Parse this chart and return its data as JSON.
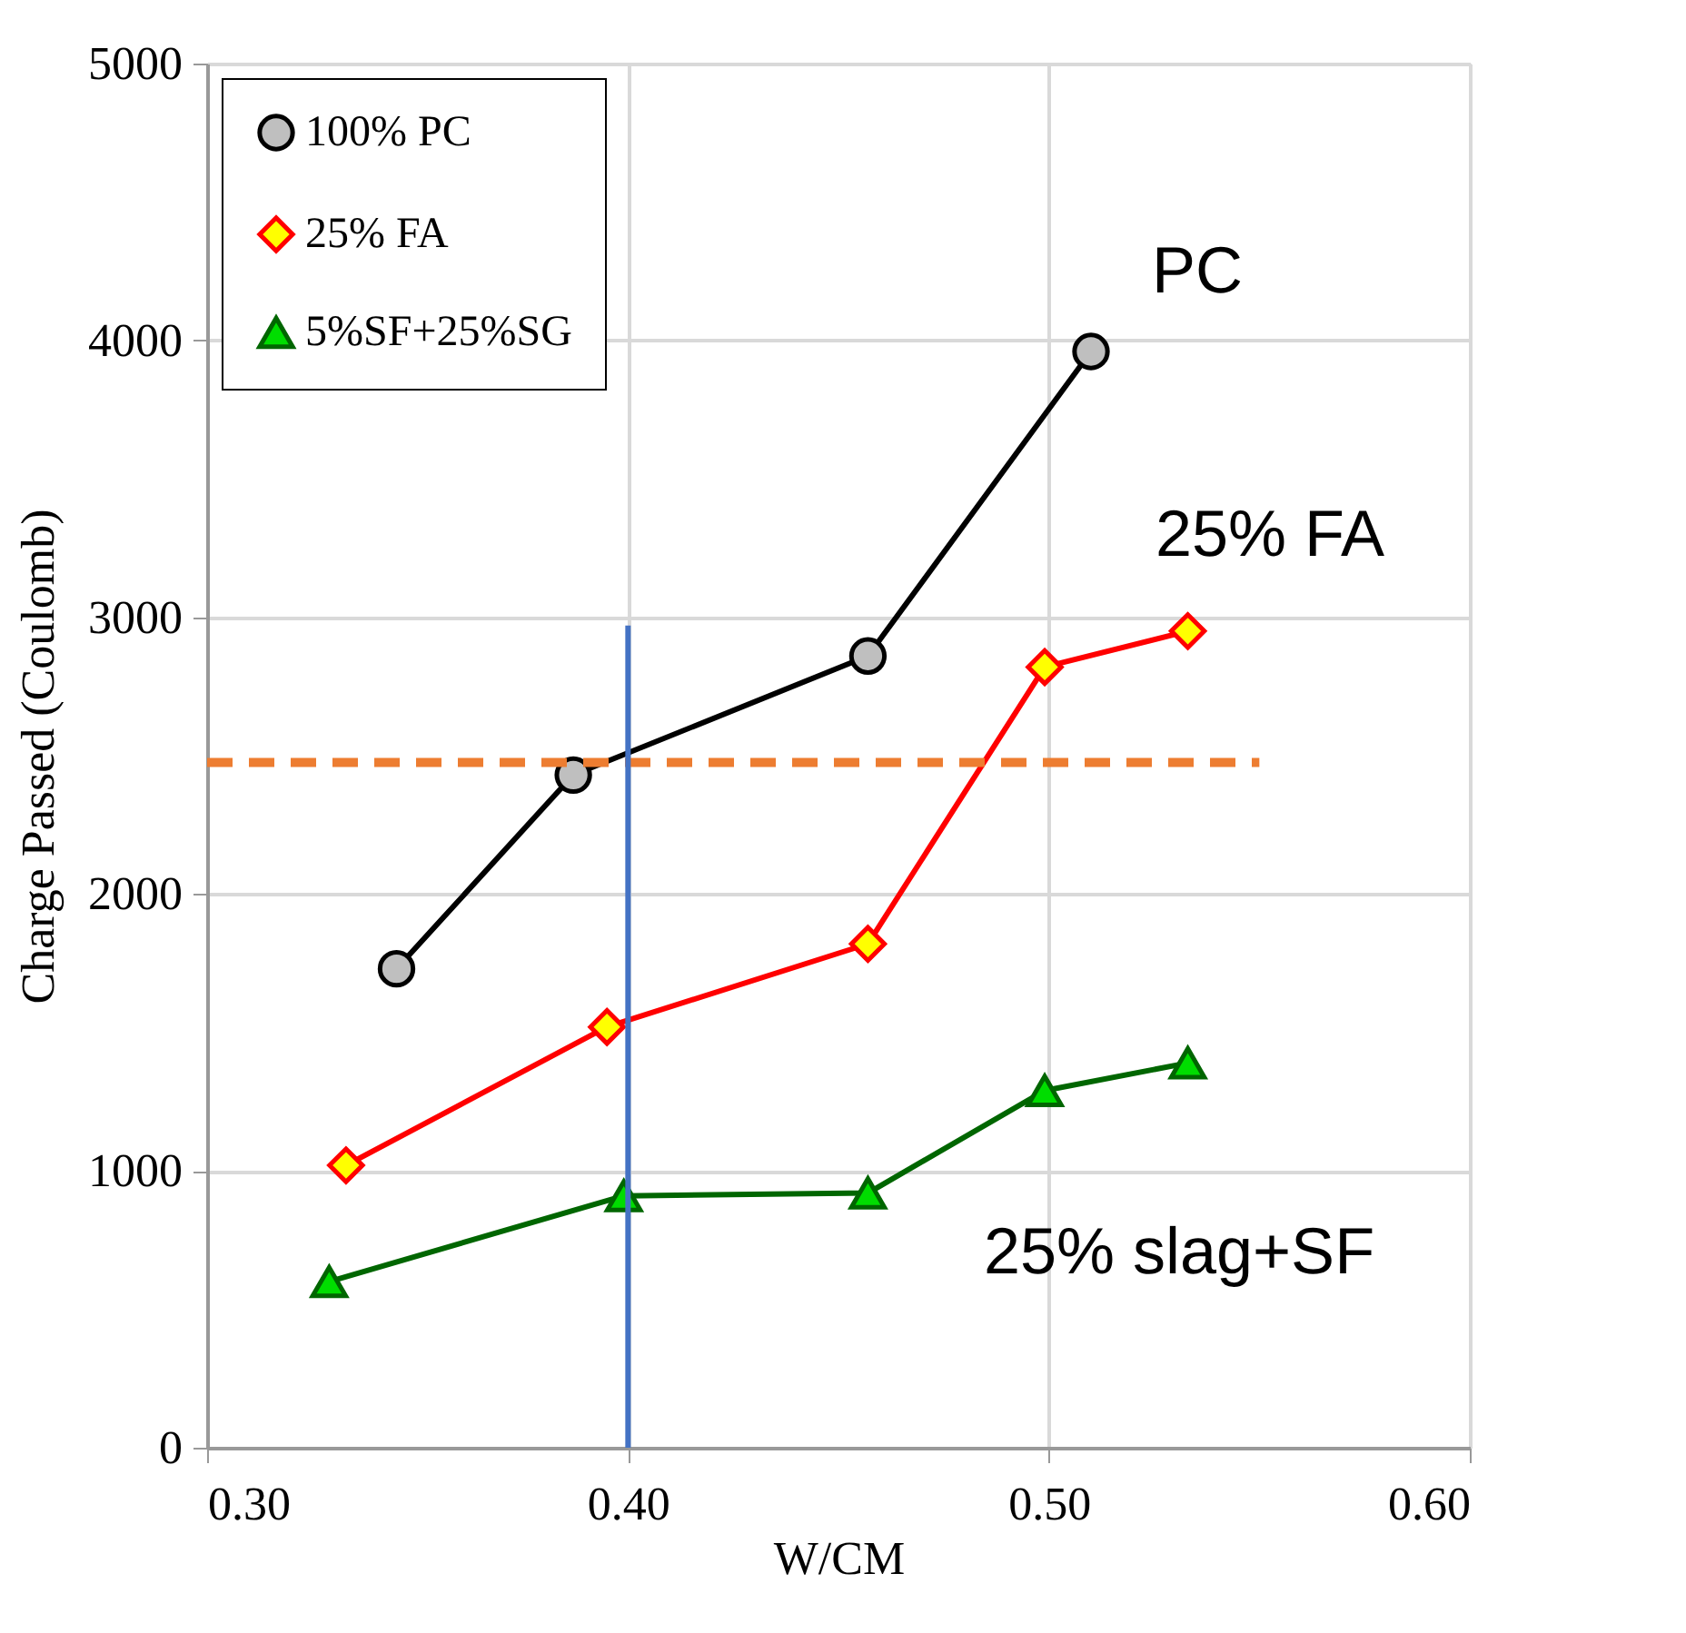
{
  "chart_data": {
    "type": "line",
    "xlabel": "W/CM",
    "ylabel": "Charge Passed (Coulomb)",
    "xlim": [
      0.3,
      0.6
    ],
    "xticks": [
      {
        "value": 0.3,
        "label": "0.30"
      },
      {
        "value": 0.4,
        "label": "0.40"
      },
      {
        "value": 0.5,
        "label": "0.50"
      },
      {
        "value": 0.6,
        "label": "0.60"
      }
    ],
    "ylim": [
      0,
      5000
    ],
    "yticks": [
      0,
      1000,
      2000,
      3000,
      4000,
      5000
    ],
    "grid": true,
    "legend": "top left",
    "series": [
      {
        "name": "100% PC",
        "color": "#000000",
        "marker": "circle",
        "x": [
          0.345,
          0.387,
          0.457,
          0.51
        ],
        "values": [
          1730,
          2430,
          2860,
          3960
        ]
      },
      {
        "name": "25% FA",
        "color": "#ff0000",
        "marker": "diamond",
        "x": [
          0.333,
          0.395,
          0.457,
          0.499,
          0.533
        ],
        "values": [
          1020,
          1520,
          1820,
          2820,
          2950
        ]
      },
      {
        "name": "5%SF+25%SG",
        "color": "#006600",
        "marker": "triangle",
        "x": [
          0.329,
          0.399,
          0.457,
          0.499,
          0.533
        ],
        "values": [
          600,
          910,
          920,
          1290,
          1390
        ]
      },
      {
        "color": "#ed7d31",
        "marker": "none",
        "line_style": "dashed",
        "x": [
          0.3,
          0.55
        ],
        "values": [
          2475,
          2475
        ]
      },
      {
        "color": "#4472c4",
        "marker": "none",
        "line_style": "solid",
        "x": [
          0.4,
          0.4
        ],
        "values": [
          0,
          2970
        ]
      }
    ],
    "annotations": [
      "PC",
      "25% FA",
      "25% slag+SF"
    ]
  }
}
